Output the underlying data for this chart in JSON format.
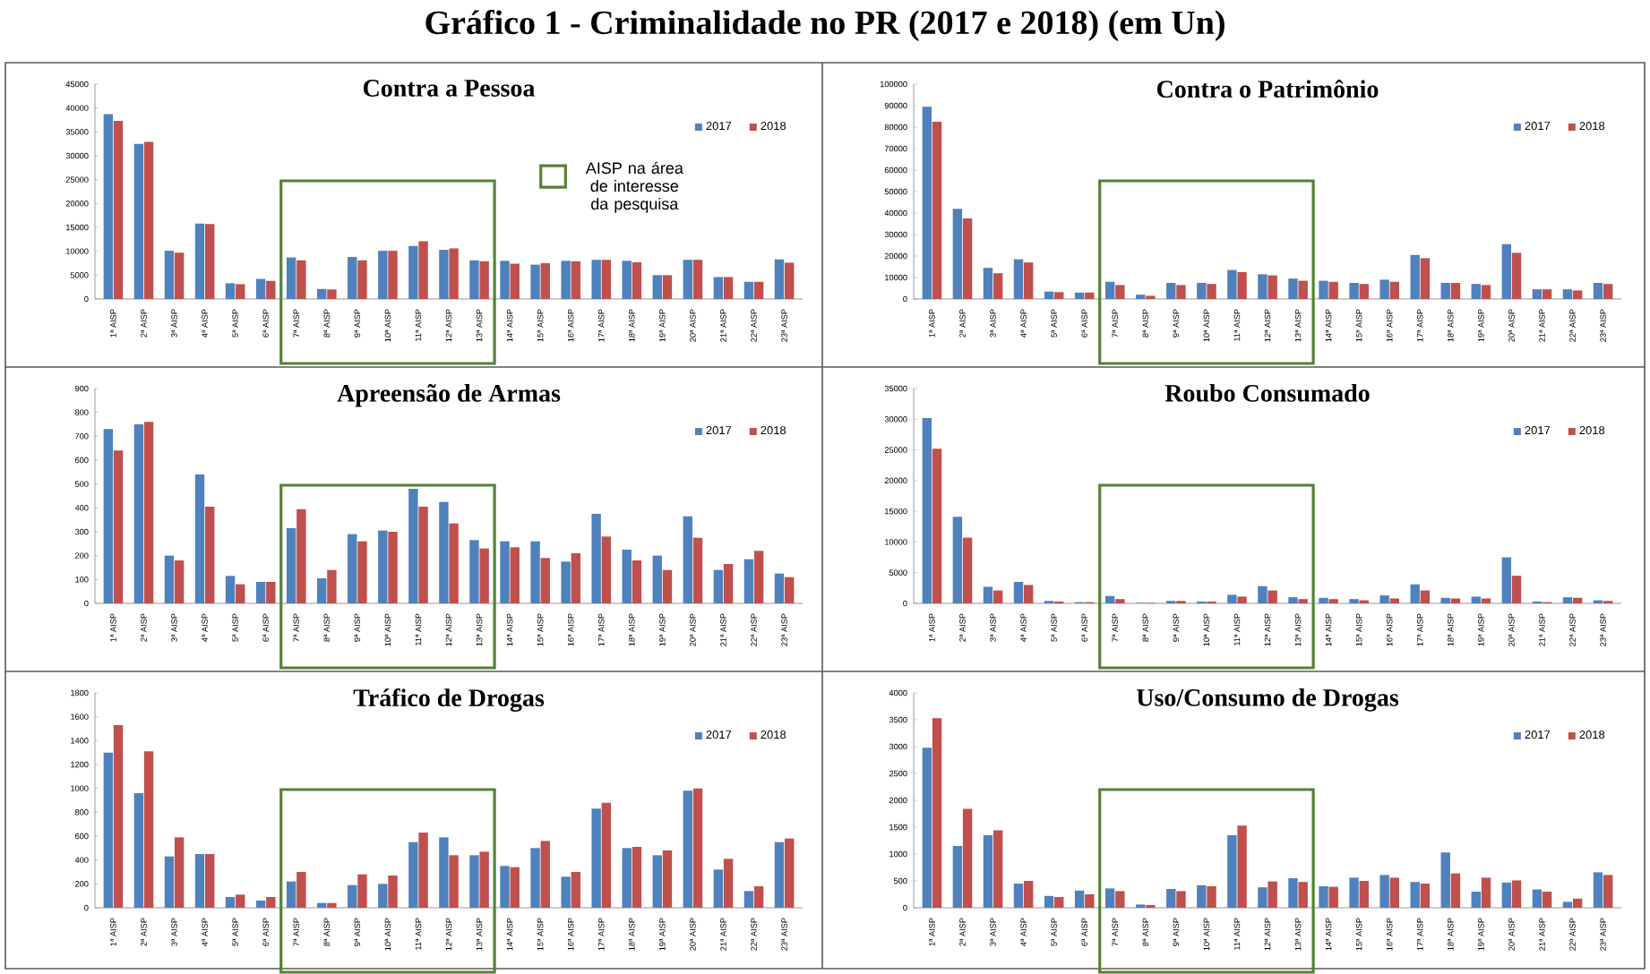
{
  "chart_data": [
    {
      "type": "bar",
      "title": "Contra a Pessoa",
      "annotations": [
        "Gráfico 1 - Criminalidade no PR (2017 e 2018) (em Un)",
        "AISP na área de interesse da pesquisa"
      ],
      "categories": [
        "1ª AISP",
        "2ª AISP",
        "3ª AISP",
        "4ª AISP",
        "5ª AISP",
        "6ª AISP",
        "7ª AISP",
        "8ª AISP",
        "9ª AISP",
        "10ª AISP",
        "11ª AISP",
        "12ª AISP",
        "13ª AISP",
        "14ª AISP",
        "15ª AISP",
        "16ª AISP",
        "17ª AISP",
        "18ª AISP",
        "19ª AISP",
        "20ª AISP",
        "21ª AISP",
        "22ª AISP",
        "23ª AISP"
      ],
      "series": [
        {
          "name": "2017",
          "color": "#4f81bd",
          "values": [
            38700,
            32500,
            10100,
            15800,
            3300,
            4200,
            8700,
            2100,
            8800,
            10100,
            11100,
            10300,
            8100,
            8000,
            7200,
            8000,
            8200,
            8000,
            5000,
            8200,
            4600,
            3600,
            8300
          ]
        },
        {
          "name": "2018",
          "color": "#c0504d",
          "values": [
            37300,
            32900,
            9700,
            15700,
            3100,
            3800,
            8100,
            2000,
            8100,
            10100,
            12100,
            10600,
            7900,
            7400,
            7500,
            7900,
            8200,
            7700,
            5000,
            8200,
            4600,
            3600,
            7600
          ]
        }
      ],
      "ylim": [
        0,
        45000
      ],
      "yticks": [
        0,
        5000,
        10000,
        15000,
        20000,
        25000,
        30000,
        35000,
        40000,
        45000
      ],
      "legend": "top right"
    },
    {
      "type": "bar",
      "title": "Contra o Patrimônio",
      "categories": [
        "1ª AISP",
        "2ª AISP",
        "3ª AISP",
        "4ª AISP",
        "5ª AISP",
        "6ª AISP",
        "7ª AISP",
        "8ª AISP",
        "9ª AISP",
        "10ª AISP",
        "11ª AISP",
        "12ª AISP",
        "13ª AISP",
        "14ª AISP",
        "15ª AISP",
        "16ª AISP",
        "17ª AISP",
        "18ª AISP",
        "19ª AISP",
        "20ª AISP",
        "21ª AISP",
        "22ª AISP",
        "23ª AISP"
      ],
      "series": [
        {
          "name": "2017",
          "color": "#4f81bd",
          "values": [
            89500,
            42000,
            14500,
            18500,
            3500,
            3000,
            8000,
            2000,
            7500,
            7500,
            13500,
            11500,
            9500,
            8500,
            7500,
            9000,
            20500,
            7500,
            7000,
            25500,
            4500,
            4500,
            7500
          ]
        },
        {
          "name": "2018",
          "color": "#c0504d",
          "values": [
            82500,
            37500,
            12000,
            17000,
            3200,
            3000,
            6500,
            1500,
            6500,
            7000,
            12500,
            11000,
            8500,
            8000,
            7000,
            8000,
            19000,
            7500,
            6500,
            21500,
            4500,
            4000,
            7000
          ]
        }
      ],
      "ylim": [
        0,
        100000
      ],
      "yticks": [
        0,
        10000,
        20000,
        30000,
        40000,
        50000,
        60000,
        70000,
        80000,
        90000,
        100000
      ],
      "legend": "top right"
    },
    {
      "type": "bar",
      "title": "Apreensão de Armas",
      "categories": [
        "1ª AISP",
        "2ª AISP",
        "3ª AISP",
        "4ª AISP",
        "5ª AISP",
        "6ª AISP",
        "7ª AISP",
        "8ª AISP",
        "9ª AISP",
        "10ª AISP",
        "11ª AISP",
        "12ª AISP",
        "13ª AISP",
        "14ª AISP",
        "15ª AISP",
        "16ª AISP",
        "17ª AISP",
        "18ª AISP",
        "19ª AISP",
        "20ª AISP",
        "21ª AISP",
        "22ª AISP",
        "23ª AISP"
      ],
      "series": [
        {
          "name": "2017",
          "color": "#4f81bd",
          "values": [
            730,
            750,
            200,
            540,
            115,
            90,
            315,
            105,
            290,
            305,
            480,
            425,
            265,
            260,
            260,
            175,
            375,
            225,
            200,
            365,
            140,
            185,
            125
          ]
        },
        {
          "name": "2018",
          "color": "#c0504d",
          "values": [
            640,
            760,
            180,
            405,
            80,
            90,
            395,
            140,
            260,
            300,
            405,
            335,
            230,
            235,
            190,
            210,
            280,
            180,
            140,
            275,
            165,
            220,
            110
          ]
        }
      ],
      "ylim": [
        0,
        900
      ],
      "yticks": [
        0,
        100,
        200,
        300,
        400,
        500,
        600,
        700,
        800,
        900
      ],
      "legend": "top right"
    },
    {
      "type": "bar",
      "title": "Roubo Consumado",
      "categories": [
        "1ª AISP",
        "2ª AISP",
        "3ª AISP",
        "4ª AISP",
        "5ª AISP",
        "6ª AISP",
        "7ª AISP",
        "8ª AISP",
        "9ª AISP",
        "10ª AISP",
        "11ª AISP",
        "12ª AISP",
        "13ª AISP",
        "14ª AISP",
        "15ª AISP",
        "16ª AISP",
        "17ª AISP",
        "18ª AISP",
        "19ª AISP",
        "20ª AISP",
        "21ª AISP",
        "22ª AISP",
        "23ª AISP"
      ],
      "series": [
        {
          "name": "2017",
          "color": "#4f81bd",
          "values": [
            30200,
            14100,
            2700,
            3500,
            400,
            200,
            1200,
            100,
            400,
            300,
            1400,
            2800,
            1000,
            900,
            700,
            1300,
            3100,
            900,
            1100,
            7500,
            300,
            1000,
            500
          ]
        },
        {
          "name": "2018",
          "color": "#c0504d",
          "values": [
            25200,
            10700,
            2100,
            3000,
            300,
            200,
            700,
            100,
            400,
            300,
            1100,
            2100,
            700,
            700,
            500,
            800,
            2100,
            800,
            800,
            4500,
            200,
            900,
            400
          ]
        }
      ],
      "ylim": [
        0,
        35000
      ],
      "yticks": [
        0,
        5000,
        10000,
        15000,
        20000,
        25000,
        30000,
        35000
      ],
      "legend": "top right"
    },
    {
      "type": "bar",
      "title": "Tráfico de Drogas",
      "categories": [
        "1ª AISP",
        "2ª AISP",
        "3ª AISP",
        "4ª AISP",
        "5ª AISP",
        "6ª AISP",
        "7ª AISP",
        "8ª AISP",
        "9ª AISP",
        "10ª AISP",
        "11ª AISP",
        "12ª AISP",
        "13ª AISP",
        "14ª AISP",
        "15ª AISP",
        "16ª AISP",
        "17ª AISP",
        "18ª AISP",
        "19ª AISP",
        "20ª AISP",
        "21ª AISP",
        "22ª AISP",
        "23ª AISP"
      ],
      "series": [
        {
          "name": "2017",
          "color": "#4f81bd",
          "values": [
            1300,
            960,
            430,
            450,
            90,
            60,
            220,
            40,
            190,
            200,
            550,
            590,
            440,
            350,
            500,
            260,
            830,
            500,
            440,
            980,
            320,
            140,
            550
          ]
        },
        {
          "name": "2018",
          "color": "#c0504d",
          "values": [
            1530,
            1310,
            590,
            450,
            110,
            90,
            300,
            40,
            280,
            270,
            630,
            440,
            470,
            340,
            560,
            300,
            880,
            510,
            480,
            1000,
            410,
            180,
            580
          ]
        }
      ],
      "ylim": [
        0,
        1800
      ],
      "yticks": [
        0,
        200,
        400,
        600,
        800,
        1000,
        1200,
        1400,
        1600,
        1800
      ],
      "legend": "top right"
    },
    {
      "type": "bar",
      "title": "Uso/Consumo de Drogas",
      "categories": [
        "1ª AISP",
        "2ª AISP",
        "3ª AISP",
        "4ª AISP",
        "5ª AISP",
        "6ª AISP",
        "7ª AISP",
        "8ª AISP",
        "9ª AISP",
        "10ª AISP",
        "11ª AISP",
        "12ª AISP",
        "13ª AISP",
        "14ª AISP",
        "15ª AISP",
        "16ª AISP",
        "17ª AISP",
        "18ª AISP",
        "19ª AISP",
        "20ª AISP",
        "21ª AISP",
        "22ª AISP",
        "23ª AISP"
      ],
      "series": [
        {
          "name": "2017",
          "color": "#4f81bd",
          "values": [
            2980,
            1150,
            1350,
            450,
            220,
            320,
            360,
            60,
            350,
            420,
            1350,
            380,
            550,
            400,
            560,
            610,
            480,
            1030,
            300,
            470,
            340,
            110,
            660
          ]
        },
        {
          "name": "2018",
          "color": "#c0504d",
          "values": [
            3530,
            1840,
            1440,
            500,
            200,
            250,
            310,
            50,
            310,
            400,
            1530,
            490,
            480,
            390,
            500,
            560,
            450,
            640,
            560,
            510,
            300,
            170,
            610
          ]
        }
      ],
      "ylim": [
        0,
        4000
      ],
      "yticks": [
        0,
        500,
        1000,
        1500,
        2000,
        2500,
        3000,
        3500,
        4000
      ],
      "legend": "top right"
    }
  ]
}
